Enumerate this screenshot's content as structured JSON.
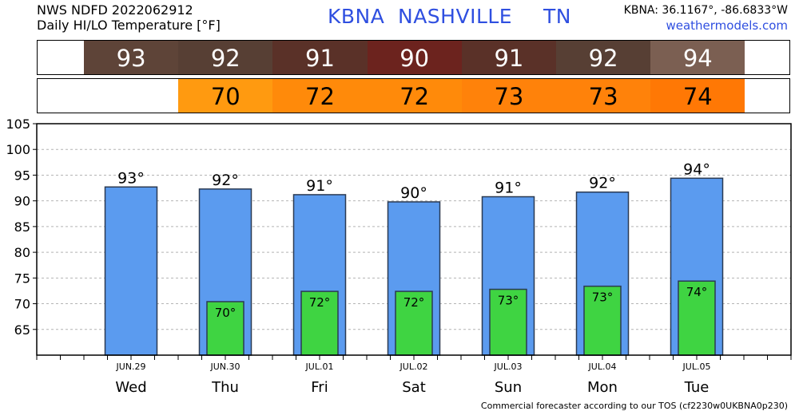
{
  "header": {
    "line1": "NWS NDFD 2022062912",
    "line2": "Daily HI/LO Temperature [°F]",
    "station_code": "KBNA",
    "city": "NASHVILLE",
    "state": "TN",
    "coords": "KBNA: 36.1167°, -86.6833°W",
    "site": "weathermodels.com"
  },
  "hi_strip": [
    {
      "value": "93",
      "color": "#5e4438"
    },
    {
      "value": "92",
      "color": "#573f34"
    },
    {
      "value": "91",
      "color": "#5a3128"
    },
    {
      "value": "90",
      "color": "#6c231e"
    },
    {
      "value": "91",
      "color": "#5a3128"
    },
    {
      "value": "92",
      "color": "#573f34"
    },
    {
      "value": "94",
      "color": "#7b5f52"
    }
  ],
  "lo_strip": [
    {
      "value": "",
      "color": "#ffffff"
    },
    {
      "value": "70",
      "color": "#ff9a10"
    },
    {
      "value": "72",
      "color": "#ff8a0a"
    },
    {
      "value": "72",
      "color": "#ff8a0a"
    },
    {
      "value": "73",
      "color": "#ff820a"
    },
    {
      "value": "73",
      "color": "#ff820a"
    },
    {
      "value": "74",
      "color": "#ff7805"
    }
  ],
  "chart_data": {
    "type": "bar",
    "categories": [
      "JUN.29",
      "JUN.30",
      "JUL.01",
      "JUL.02",
      "JUL.03",
      "JUL.04",
      "JUL.05"
    ],
    "day_labels": [
      "Wed",
      "Thu",
      "Fri",
      "Sat",
      "Sun",
      "Mon",
      "Tue"
    ],
    "series": [
      {
        "values": [
          92.7,
          92.3,
          91.2,
          89.8,
          90.8,
          91.7,
          94.4
        ],
        "labels": [
          "93°",
          "92°",
          "91°",
          "90°",
          "91°",
          "92°",
          "94°"
        ],
        "color": "#5b9bef"
      },
      {
        "values": [
          null,
          70.4,
          72.4,
          72.4,
          72.8,
          73.4,
          74.4
        ],
        "labels": [
          "",
          "70°",
          "72°",
          "72°",
          "73°",
          "73°",
          "74°"
        ],
        "color": "#3fd442"
      }
    ],
    "yticks": [
      65,
      70,
      75,
      80,
      85,
      90,
      95,
      100,
      105
    ],
    "ylim": [
      60,
      105
    ],
    "grid": true
  },
  "footer": "Commercial forecaster according to our TOS (cf2230w0UKBNA0p230)"
}
